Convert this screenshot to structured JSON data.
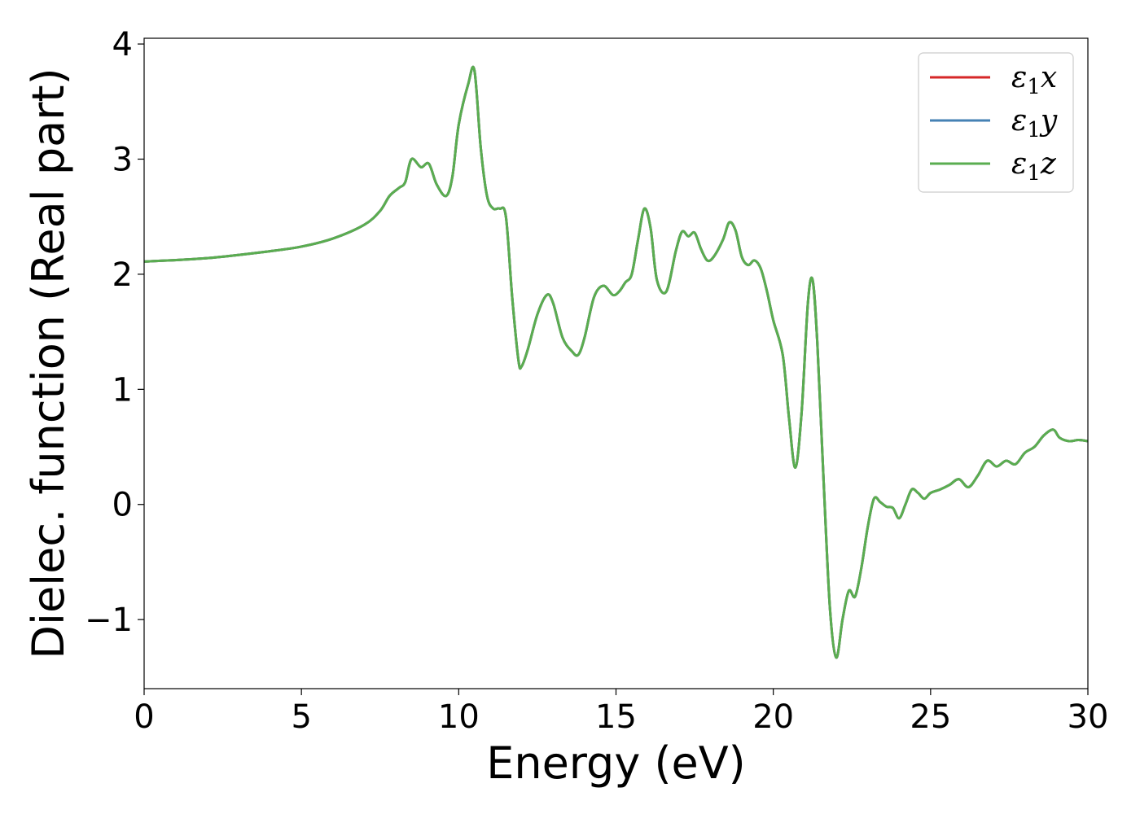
{
  "chart_data": {
    "type": "line",
    "title": "",
    "xlabel": "Energy (eV)",
    "ylabel": "Dielec. function (Real part)",
    "xlim": [
      0,
      30
    ],
    "ylim": [
      -1.6,
      4.05
    ],
    "xticks": [
      {
        "value": 0,
        "label": "0"
      },
      {
        "value": 5,
        "label": "5"
      },
      {
        "value": 10,
        "label": "10"
      },
      {
        "value": 15,
        "label": "15"
      },
      {
        "value": 20,
        "label": "20"
      },
      {
        "value": 25,
        "label": "25"
      },
      {
        "value": 30,
        "label": "30"
      }
    ],
    "yticks": [
      {
        "value": -1,
        "label": "−1"
      },
      {
        "value": 0,
        "label": "0"
      },
      {
        "value": 1,
        "label": "1"
      },
      {
        "value": 2,
        "label": "2"
      },
      {
        "value": 3,
        "label": "3"
      },
      {
        "value": 4,
        "label": "4"
      }
    ],
    "grid": false,
    "legend_position": "top-right",
    "series": [
      {
        "name": "ε₁x",
        "label_base": "ε",
        "label_sub": "1",
        "label_var": "x",
        "color": "#d62728"
      },
      {
        "name": "ε₁y",
        "label_base": "ε",
        "label_sub": "1",
        "label_var": "y",
        "color": "#4682b4"
      },
      {
        "name": "ε₁z",
        "label_base": "ε",
        "label_sub": "1",
        "label_var": "z",
        "color": "#5aad50"
      }
    ],
    "curve": {
      "x": [
        0,
        2,
        4,
        5,
        6,
        7,
        7.5,
        7.8,
        8.1,
        8.3,
        8.5,
        8.8,
        9.05,
        9.3,
        9.6,
        9.8,
        10.0,
        10.3,
        10.5,
        10.7,
        10.9,
        11.1,
        11.3,
        11.5,
        11.7,
        11.9,
        12.0,
        12.2,
        12.5,
        12.8,
        13.0,
        13.3,
        13.6,
        13.8,
        14.0,
        14.3,
        14.6,
        14.9,
        15.1,
        15.3,
        15.5,
        15.7,
        15.9,
        16.1,
        16.3,
        16.6,
        16.9,
        17.1,
        17.3,
        17.5,
        17.7,
        17.9,
        18.1,
        18.4,
        18.6,
        18.8,
        19.0,
        19.2,
        19.4,
        19.6,
        19.8,
        20.0,
        20.3,
        20.5,
        20.7,
        20.9,
        21.1,
        21.25,
        21.4,
        21.6,
        21.8,
        22.0,
        22.2,
        22.4,
        22.6,
        22.8,
        23.0,
        23.2,
        23.4,
        23.6,
        23.8,
        24.0,
        24.2,
        24.4,
        24.6,
        24.8,
        25.0,
        25.3,
        25.6,
        25.9,
        26.2,
        26.5,
        26.8,
        27.1,
        27.4,
        27.7,
        28.0,
        28.3,
        28.6,
        28.9,
        29.1,
        29.4,
        29.7,
        30.0
      ],
      "y": [
        2.11,
        2.14,
        2.2,
        2.24,
        2.31,
        2.43,
        2.55,
        2.68,
        2.75,
        2.8,
        3.0,
        2.93,
        2.96,
        2.78,
        2.68,
        2.85,
        3.3,
        3.65,
        3.77,
        3.1,
        2.68,
        2.57,
        2.57,
        2.5,
        1.8,
        1.25,
        1.2,
        1.35,
        1.65,
        1.82,
        1.75,
        1.45,
        1.33,
        1.3,
        1.45,
        1.8,
        1.9,
        1.82,
        1.85,
        1.93,
        2.0,
        2.3,
        2.57,
        2.4,
        1.95,
        1.85,
        2.2,
        2.37,
        2.33,
        2.36,
        2.22,
        2.12,
        2.15,
        2.3,
        2.45,
        2.38,
        2.15,
        2.08,
        2.12,
        2.05,
        1.85,
        1.6,
        1.3,
        0.75,
        0.32,
        0.8,
        1.75,
        1.95,
        1.4,
        0.2,
        -0.9,
        -1.33,
        -1.0,
        -0.75,
        -0.8,
        -0.55,
        -0.2,
        0.05,
        0.02,
        -0.02,
        -0.03,
        -0.12,
        0.0,
        0.13,
        0.1,
        0.05,
        0.1,
        0.13,
        0.17,
        0.22,
        0.15,
        0.25,
        0.38,
        0.33,
        0.38,
        0.35,
        0.45,
        0.5,
        0.6,
        0.65,
        0.58,
        0.55,
        0.56,
        0.55
      ]
    }
  }
}
